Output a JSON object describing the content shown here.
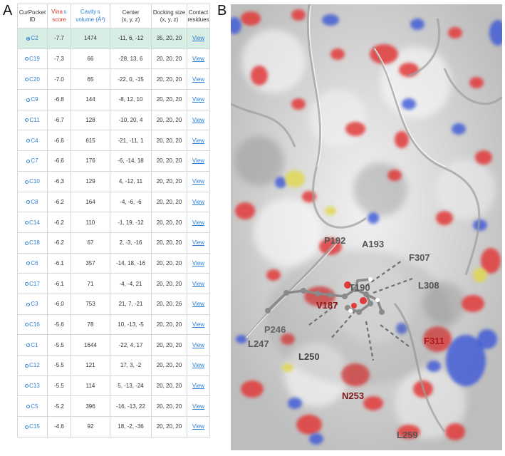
{
  "panel_labels": {
    "a": "A",
    "b": "B"
  },
  "table": {
    "headers": {
      "id": [
        "CurPocket",
        "ID"
      ],
      "vina": [
        "Vina",
        "score"
      ],
      "volume": [
        "Cavity",
        "volume (Å³)"
      ],
      "center": [
        "Center",
        "(x, y, z)"
      ],
      "docking": [
        "Docking size",
        "(x, y, z)"
      ],
      "contact": [
        "Contact",
        "residues"
      ]
    },
    "sort_icon": "⇅",
    "view_label": "View",
    "rows": [
      {
        "id": "C2",
        "score": "-7.7",
        "volume": "1474",
        "center": "-11, 6, -12",
        "size": "35, 20, 20",
        "selected": true
      },
      {
        "id": "C19",
        "score": "-7.3",
        "volume": "66",
        "center": "-28, 13, 6",
        "size": "20, 20, 20"
      },
      {
        "id": "C20",
        "score": "-7.0",
        "volume": "65",
        "center": "-22, 0, -15",
        "size": "20, 20, 20"
      },
      {
        "id": "C9",
        "score": "-6.8",
        "volume": "144",
        "center": "-8, 12, 10",
        "size": "20, 20, 20"
      },
      {
        "id": "C11",
        "score": "-6.7",
        "volume": "128",
        "center": "-10, 20, 4",
        "size": "20, 20, 20"
      },
      {
        "id": "C4",
        "score": "-6.6",
        "volume": "615",
        "center": "-21, -11, 1",
        "size": "20, 20, 20"
      },
      {
        "id": "C7",
        "score": "-6.6",
        "volume": "176",
        "center": "-6, -14, 18",
        "size": "20, 20, 20"
      },
      {
        "id": "C10",
        "score": "-6.3",
        "volume": "129",
        "center": "4, -12, 11",
        "size": "20, 20, 20"
      },
      {
        "id": "C8",
        "score": "-6.2",
        "volume": "164",
        "center": "-4, -6, -6",
        "size": "20, 20, 20"
      },
      {
        "id": "C14",
        "score": "-6.2",
        "volume": "110",
        "center": "-1, 19, -12",
        "size": "20, 20, 20"
      },
      {
        "id": "C18",
        "score": "-6.2",
        "volume": "67",
        "center": "2, -3, -16",
        "size": "20, 20, 20"
      },
      {
        "id": "C6",
        "score": "-6.1",
        "volume": "357",
        "center": "-14, 18, -16",
        "size": "20, 20, 20"
      },
      {
        "id": "C17",
        "score": "-6.1",
        "volume": "71",
        "center": "-4, -4, 21",
        "size": "20, 20, 20"
      },
      {
        "id": "C3",
        "score": "-6.0",
        "volume": "753",
        "center": "21, 7, -21",
        "size": "20, 20, 26"
      },
      {
        "id": "C16",
        "score": "-5.6",
        "volume": "78",
        "center": "10, -13, -5",
        "size": "20, 20, 20"
      },
      {
        "id": "C1",
        "score": "-5.5",
        "volume": "1644",
        "center": "-22, 4, 17",
        "size": "20, 20, 20"
      },
      {
        "id": "C12",
        "score": "-5.5",
        "volume": "121",
        "center": "17, 3, -2",
        "size": "20, 20, 20"
      },
      {
        "id": "C13",
        "score": "-5.5",
        "volume": "114",
        "center": "5, -13, -24",
        "size": "20, 20, 20"
      },
      {
        "id": "C5",
        "score": "-5.2",
        "volume": "396",
        "center": "-16, -13, 22",
        "size": "20, 20, 20"
      },
      {
        "id": "C15",
        "score": "-4.6",
        "volume": "92",
        "center": "18, -2, -36",
        "size": "20, 20, 20"
      }
    ]
  },
  "surface": {
    "residues": {
      "p192": "P192",
      "a193": "A193",
      "f307": "F307",
      "t190": "T190",
      "l308": "L308",
      "v187": "V187",
      "p246": "P246",
      "l247": "L247",
      "l250": "L250",
      "f311": "F311",
      "n253": "N253",
      "l259": "L259"
    },
    "colors": {
      "surface": "#cfcfcf",
      "oxygen": "#e23a3a",
      "nitrogen": "#3b55d6",
      "sulfur": "#e0d84a",
      "label_dark": "#555555",
      "label_red": "#b01818",
      "ligand": "#8a8a8a"
    }
  }
}
